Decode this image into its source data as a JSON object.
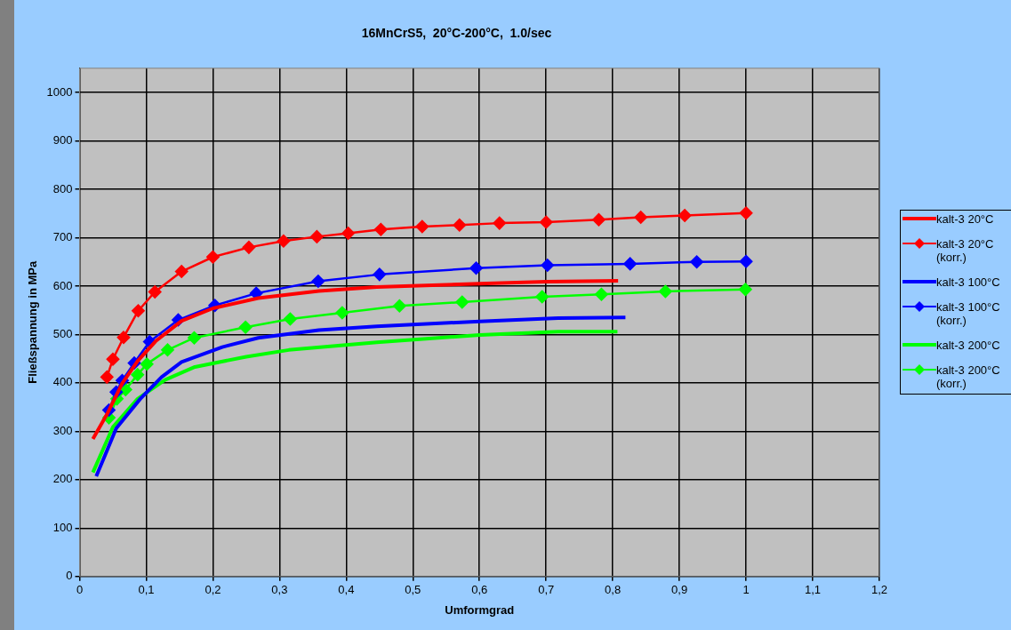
{
  "chart_data": {
    "type": "line",
    "title": "16MnCrS5,  20°C-200°C,  1.0/sec",
    "xlabel": "Umformgrad",
    "ylabel": "Fließspannung in MPa",
    "xlim": [
      0,
      1.2
    ],
    "xticks": [
      0,
      {
        "value": 0.1,
        "label": "0,1"
      },
      {
        "value": 0.2,
        "label": "0,2"
      },
      {
        "value": 0.3,
        "label": "0,3"
      },
      {
        "value": 0.4,
        "label": "0,4"
      },
      {
        "value": 0.5,
        "label": "0,5"
      },
      {
        "value": 0.6,
        "label": "0,6"
      },
      {
        "value": 0.7,
        "label": "0,7"
      },
      {
        "value": 0.8,
        "label": "0,8"
      },
      {
        "value": 0.9,
        "label": "0,9"
      },
      1,
      {
        "value": 1.1,
        "label": "1,1"
      },
      {
        "value": 1.2,
        "label": "1,2"
      }
    ],
    "ylim": [
      0,
      1050
    ],
    "yticks": [
      0,
      100,
      200,
      300,
      400,
      500,
      600,
      700,
      800,
      900,
      1000
    ],
    "grid": true,
    "legend": "right",
    "series": [
      {
        "name": "kalt-3 20°C",
        "color": "#ff0000",
        "marker": "none",
        "x": [
          0.02,
          0.041,
          0.064,
          0.087,
          0.114,
          0.153,
          0.2,
          0.268,
          0.359,
          0.446,
          0.6,
          0.7,
          0.808
        ],
        "values": [
          284,
          335,
          399,
          445,
          486,
          528,
          554,
          575,
          590,
          598,
          605,
          609,
          611
        ]
      },
      {
        "name": "kalt-3 20°C (korr.)",
        "color": "#ff0000",
        "marker": "diamond",
        "x": [
          0.041,
          0.05,
          0.066,
          0.088,
          0.113,
          0.153,
          0.2,
          0.254,
          0.306,
          0.356,
          0.403,
          0.452,
          0.514,
          0.57,
          0.63,
          0.7,
          0.779,
          0.842,
          0.908,
          1.0
        ],
        "values": [
          412,
          449,
          494,
          549,
          588,
          630,
          660,
          680,
          693,
          702,
          709,
          717,
          723,
          726,
          730,
          732,
          737,
          742,
          746,
          751
        ]
      },
      {
        "name": "kalt-3 100°C",
        "color": "#0000ff",
        "marker": "none",
        "x": [
          0.025,
          0.055,
          0.091,
          0.123,
          0.153,
          0.214,
          0.268,
          0.359,
          0.446,
          0.6,
          0.718,
          0.819
        ],
        "values": [
          207,
          306,
          367,
          412,
          443,
          474,
          493,
          509,
          517,
          527,
          534,
          535
        ]
      },
      {
        "name": "kalt-3 100°C (korr.)",
        "color": "#0000ff",
        "marker": "diamond",
        "x": [
          0.044,
          0.055,
          0.064,
          0.082,
          0.105,
          0.148,
          0.203,
          0.265,
          0.358,
          0.45,
          0.595,
          0.702,
          0.826,
          0.926,
          1.0
        ],
        "values": [
          344,
          381,
          405,
          441,
          485,
          530,
          560,
          585,
          610,
          624,
          637,
          643,
          646,
          650,
          651
        ]
      },
      {
        "name": "kalt-3 200°C",
        "color": "#00ff00",
        "marker": "none",
        "x": [
          0.02,
          0.05,
          0.087,
          0.128,
          0.173,
          0.25,
          0.314,
          0.446,
          0.6,
          0.718,
          0.807
        ],
        "values": [
          215,
          309,
          367,
          406,
          433,
          454,
          468,
          484,
          499,
          506,
          506
        ]
      },
      {
        "name": "kalt-3 200°C (korr.)",
        "color": "#00ff00",
        "marker": "diamond",
        "x": [
          0.044,
          0.056,
          0.069,
          0.087,
          0.101,
          0.132,
          0.172,
          0.249,
          0.316,
          0.394,
          0.48,
          0.574,
          0.694,
          0.783,
          0.879,
          0.999
        ],
        "values": [
          328,
          367,
          386,
          417,
          439,
          468,
          493,
          515,
          532,
          545,
          559,
          567,
          578,
          583,
          589,
          593
        ]
      }
    ]
  }
}
